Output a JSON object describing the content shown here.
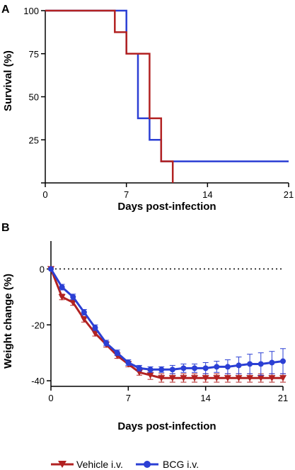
{
  "chart_data": [
    {
      "panel": "A",
      "type": "line",
      "step": true,
      "xlabel": "Days post-infection",
      "ylabel": "Survival (%)",
      "xlim": [
        0,
        21
      ],
      "ylim": [
        0,
        100
      ],
      "xticks": [
        0,
        7,
        14,
        21
      ],
      "yticks": [
        25,
        50,
        75,
        100
      ],
      "series": [
        {
          "name": "Vehicle i.v.",
          "color": "#b22222",
          "points": [
            [
              0,
              100
            ],
            [
              6,
              100
            ],
            [
              6,
              87.5
            ],
            [
              7,
              87.5
            ],
            [
              7,
              75
            ],
            [
              9,
              75
            ],
            [
              9,
              37.5
            ],
            [
              10,
              37.5
            ],
            [
              10,
              12.5
            ],
            [
              11,
              12.5
            ],
            [
              11,
              0
            ]
          ]
        },
        {
          "name": "BCG i.v.",
          "color": "#2b3fd4",
          "points": [
            [
              0,
              100
            ],
            [
              7,
              100
            ],
            [
              7,
              75
            ],
            [
              8,
              75
            ],
            [
              8,
              37.5
            ],
            [
              9,
              37.5
            ],
            [
              9,
              25
            ],
            [
              10,
              25
            ],
            [
              10,
              12.5
            ],
            [
              21,
              12.5
            ]
          ]
        }
      ]
    },
    {
      "panel": "B",
      "type": "line",
      "xlabel": "Days post-infection",
      "ylabel": "Weight change (%)",
      "xlim": [
        0,
        21
      ],
      "ylim": [
        -42,
        10
      ],
      "xticks": [
        0,
        7,
        14,
        21
      ],
      "yticks": [
        0,
        -20,
        -40
      ],
      "reference_line": 0,
      "series": [
        {
          "name": "Vehicle i.v.",
          "color": "#b22222",
          "marker": "triangle-down",
          "x": [
            0,
            1,
            2,
            3,
            4,
            5,
            6,
            7,
            8,
            9,
            10,
            11,
            12,
            13,
            14,
            15,
            16,
            17,
            18,
            19,
            20,
            21
          ],
          "y": [
            0,
            -10,
            -12,
            -18,
            -23,
            -27,
            -31,
            -34,
            -37,
            -38,
            -39,
            -39,
            -39,
            -39,
            -39,
            -39,
            -39,
            -39,
            -39,
            -39,
            -39,
            -39
          ],
          "error": [
            0,
            1,
            1,
            1,
            1,
            1,
            1,
            1,
            1,
            1.5,
            1.5,
            1.5,
            1.5,
            1.5,
            1.5,
            1.5,
            1.5,
            1.5,
            1.5,
            1.5,
            1.5,
            1.5
          ]
        },
        {
          "name": "BCG i.v.",
          "color": "#2b3fd4",
          "marker": "circle",
          "x": [
            0,
            1,
            2,
            3,
            4,
            5,
            6,
            7,
            8,
            9,
            10,
            11,
            12,
            13,
            14,
            15,
            16,
            17,
            18,
            19,
            20,
            21
          ],
          "y": [
            0,
            -6.5,
            -10,
            -15.5,
            -21,
            -26.5,
            -30,
            -33.5,
            -35.5,
            -36,
            -36,
            -36,
            -35.5,
            -35.5,
            -35.5,
            -35,
            -35,
            -34.5,
            -34,
            -34,
            -33.5,
            -33
          ],
          "error": [
            0,
            1,
            1,
            1,
            1,
            1,
            1,
            1,
            1,
            1,
            1,
            1.5,
            1.5,
            1.5,
            2,
            2,
            2.5,
            3,
            3.5,
            4,
            4,
            4.5
          ]
        }
      ]
    }
  ],
  "legend": [
    {
      "label": "Vehicle i.v.",
      "color": "#b22222",
      "marker": "triangle-down"
    },
    {
      "label": "BCG i.v.",
      "color": "#2b3fd4",
      "marker": "circle"
    }
  ]
}
